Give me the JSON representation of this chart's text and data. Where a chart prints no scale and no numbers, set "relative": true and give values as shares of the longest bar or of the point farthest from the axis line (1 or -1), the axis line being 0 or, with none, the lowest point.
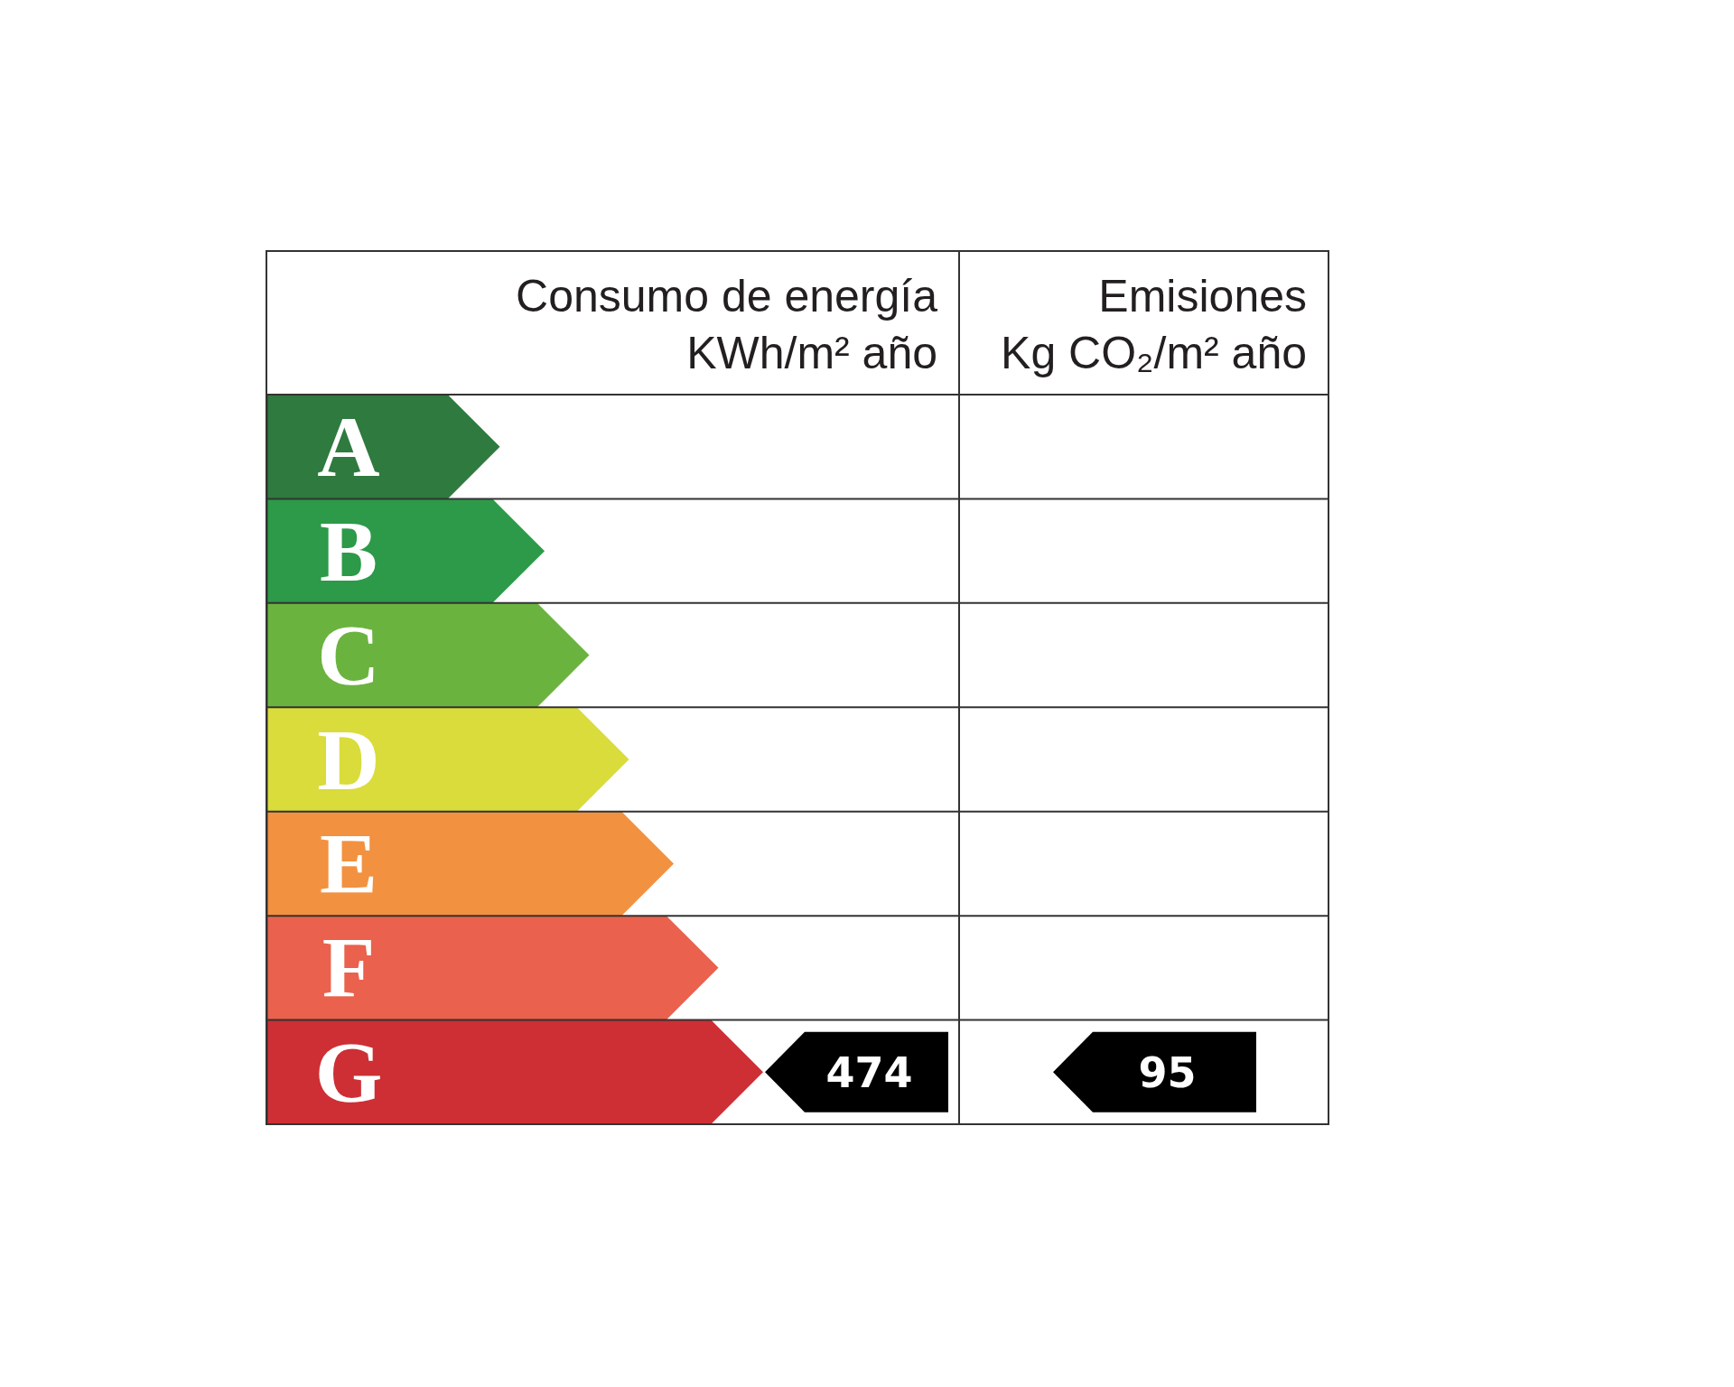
{
  "chart_data": {
    "type": "bar",
    "orientation": "horizontal",
    "relative": true,
    "categories": [
      "A",
      "B",
      "C",
      "D",
      "E",
      "F",
      "G"
    ],
    "values": [
      0.47,
      0.56,
      0.65,
      0.73,
      0.82,
      0.91,
      1
    ],
    "colors": [
      "#2f7a3f",
      "#2c9a48",
      "#6bb33f",
      "#d9dc3b",
      "#f29140",
      "#ea614d",
      "#cd2f35"
    ],
    "annotations": [
      "Consumo de energía\nKWh/m² año",
      "Emisiones\nKg CO₂/m² año",
      "474",
      "95"
    ]
  }
}
